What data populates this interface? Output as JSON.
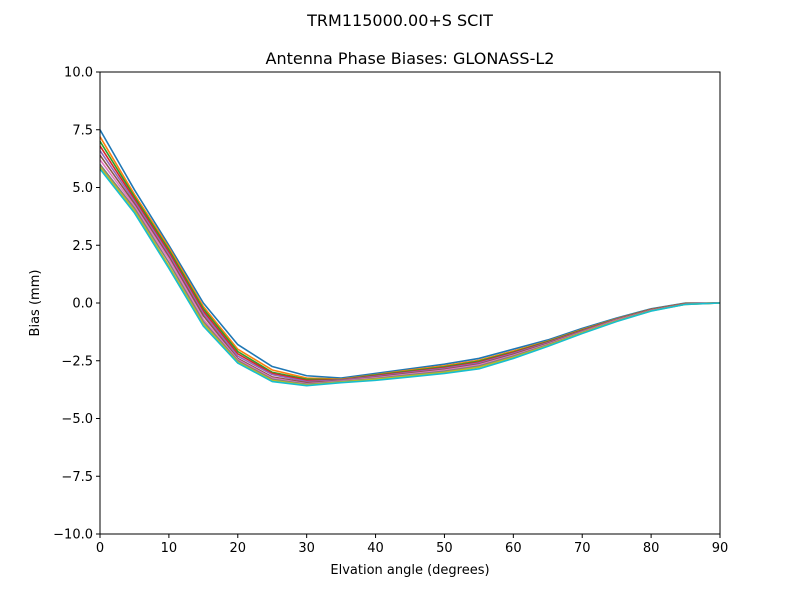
{
  "suptitle": "TRM115000.00+S  SCIT",
  "chart_data": {
    "type": "line",
    "title": "Antenna Phase Biases: GLONASS-L2",
    "xlabel": "Elvation angle (degrees)",
    "ylabel": "Bias (mm)",
    "xlim": [
      0,
      90
    ],
    "ylim": [
      -10.0,
      10.0
    ],
    "xticks": [
      0,
      10,
      20,
      30,
      40,
      50,
      60,
      70,
      80,
      90
    ],
    "xtick_labels": [
      "0",
      "10",
      "20",
      "30",
      "40",
      "50",
      "60",
      "70",
      "80",
      "90"
    ],
    "yticks": [
      10.0,
      7.5,
      5.0,
      2.5,
      0.0,
      -2.5,
      -5.0,
      -7.5,
      -10.0
    ],
    "ytick_labels": [
      "10.0",
      "7.5",
      "5.0",
      "2.5",
      "0.0",
      "−2.5",
      "−5.0",
      "−7.5",
      "−10.0"
    ],
    "grid": false,
    "x": [
      0,
      5,
      10,
      15,
      20,
      25,
      30,
      35,
      40,
      45,
      50,
      55,
      60,
      65,
      70,
      75,
      80,
      85,
      90
    ],
    "series_colors": [
      "#1f77b4",
      "#ff7f0e",
      "#2ca02c",
      "#d62728",
      "#9467bd",
      "#8c564b",
      "#e377c2",
      "#7f7f7f",
      "#bcbd22",
      "#17becf"
    ],
    "series": [
      {
        "values": [
          7.5,
          4.9,
          2.5,
          0.0,
          -1.8,
          -2.75,
          -3.15,
          -3.25,
          -3.05,
          -2.85,
          -2.65,
          -2.4,
          -2.0,
          -1.6,
          -1.1,
          -0.65,
          -0.25,
          0.0,
          0.0
        ]
      },
      {
        "values": [
          7.2,
          4.7,
          2.4,
          -0.15,
          -2.0,
          -2.9,
          -3.25,
          -3.3,
          -3.1,
          -2.9,
          -2.72,
          -2.48,
          -2.08,
          -1.65,
          -1.15,
          -0.68,
          -0.27,
          -0.02,
          0.0
        ]
      },
      {
        "values": [
          7.0,
          4.6,
          2.3,
          -0.25,
          -2.1,
          -3.0,
          -3.3,
          -3.32,
          -3.12,
          -2.94,
          -2.76,
          -2.52,
          -2.12,
          -1.67,
          -1.17,
          -0.7,
          -0.28,
          -0.03,
          0.0
        ]
      },
      {
        "values": [
          6.8,
          4.5,
          2.2,
          -0.35,
          -2.2,
          -3.05,
          -3.35,
          -3.33,
          -3.15,
          -2.97,
          -2.8,
          -2.56,
          -2.15,
          -1.7,
          -1.19,
          -0.71,
          -0.29,
          -0.03,
          0.0
        ]
      },
      {
        "values": [
          6.6,
          4.4,
          2.1,
          -0.45,
          -2.3,
          -3.1,
          -3.4,
          -3.34,
          -3.18,
          -3.0,
          -2.83,
          -2.6,
          -2.18,
          -1.72,
          -1.21,
          -0.72,
          -0.3,
          -0.04,
          0.0
        ]
      },
      {
        "values": [
          6.4,
          4.3,
          2.0,
          -0.55,
          -2.4,
          -3.2,
          -3.45,
          -3.36,
          -3.21,
          -3.03,
          -2.87,
          -2.64,
          -2.22,
          -1.75,
          -1.23,
          -0.74,
          -0.31,
          -0.04,
          0.0
        ]
      },
      {
        "values": [
          6.2,
          4.2,
          1.9,
          -0.7,
          -2.45,
          -3.25,
          -3.5,
          -3.38,
          -3.24,
          -3.07,
          -2.91,
          -2.68,
          -2.26,
          -1.78,
          -1.25,
          -0.75,
          -0.32,
          -0.05,
          0.0
        ]
      },
      {
        "values": [
          6.0,
          4.1,
          1.75,
          -0.8,
          -2.5,
          -3.3,
          -3.52,
          -3.4,
          -3.27,
          -3.11,
          -2.95,
          -2.73,
          -2.3,
          -1.81,
          -1.27,
          -0.77,
          -0.33,
          -0.05,
          0.0
        ]
      },
      {
        "values": [
          5.9,
          4.0,
          1.6,
          -0.9,
          -2.55,
          -3.35,
          -3.55,
          -3.42,
          -3.3,
          -3.15,
          -3.0,
          -2.78,
          -2.35,
          -1.84,
          -1.29,
          -0.78,
          -0.34,
          -0.06,
          0.0
        ]
      },
      {
        "values": [
          5.8,
          3.9,
          1.5,
          -1.0,
          -2.6,
          -3.4,
          -3.58,
          -3.45,
          -3.35,
          -3.2,
          -3.05,
          -2.85,
          -2.4,
          -1.88,
          -1.32,
          -0.8,
          -0.35,
          -0.06,
          0.0
        ]
      }
    ]
  }
}
